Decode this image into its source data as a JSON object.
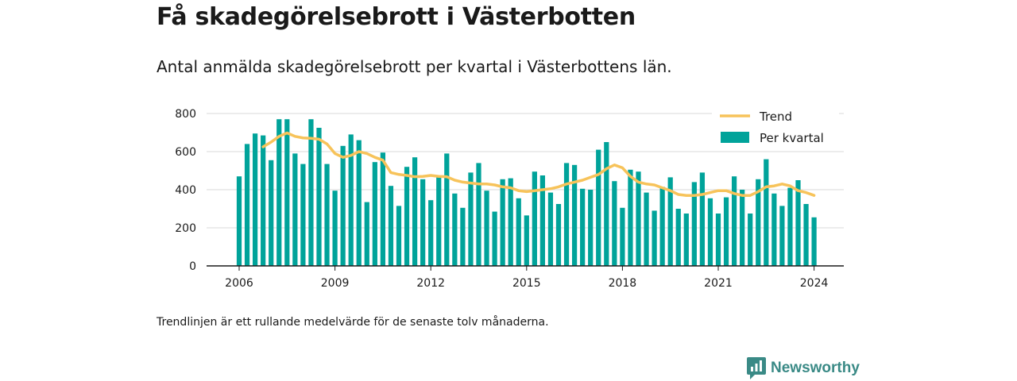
{
  "title": "Få skadegörelsebrott i Västerbotten",
  "subtitle": "Antal anmälda skadegörelsebrott per kvartal i Västerbottens län.",
  "footnote": "Trendlinjen är ett rullande medelvärde för de senaste tolv månaderna.",
  "brand": {
    "name": "Newsworthy",
    "icon": "newsworthy-chart-icon",
    "color": "#3a8a86"
  },
  "colors": {
    "bars": "#00a39a",
    "trend": "#f7c35a",
    "grid": "#d9d9d9",
    "axis": "#1a1a1a"
  },
  "chart_data": {
    "type": "bar",
    "x_unit": "quarter",
    "start_quarter": "2006Q1",
    "xticks": [
      "2006",
      "2009",
      "2012",
      "2015",
      "2018",
      "2021",
      "2024"
    ],
    "yticks": [
      "0",
      "200",
      "400",
      "600",
      "800"
    ],
    "ylim": [
      0,
      800
    ],
    "legend_position": "top-right",
    "grid": true,
    "series": [
      {
        "name": "Per kvartal",
        "type": "bar",
        "values": [
          470,
          640,
          695,
          685,
          555,
          770,
          770,
          590,
          535,
          770,
          725,
          535,
          395,
          630,
          690,
          660,
          335,
          545,
          595,
          420,
          315,
          520,
          570,
          455,
          345,
          465,
          590,
          380,
          305,
          490,
          540,
          395,
          285,
          455,
          460,
          355,
          265,
          495,
          475,
          385,
          325,
          540,
          530,
          405,
          400,
          610,
          650,
          445,
          305,
          505,
          495,
          385,
          290,
          415,
          465,
          300,
          275,
          440,
          490,
          355,
          275,
          360,
          470,
          400,
          275,
          455,
          560,
          380,
          315,
          410,
          450,
          325,
          255
        ]
      },
      {
        "name": "Trend",
        "type": "line",
        "values": [
          null,
          null,
          null,
          625,
          650,
          680,
          698,
          680,
          672,
          670,
          665,
          640,
          590,
          570,
          580,
          600,
          590,
          570,
          555,
          490,
          480,
          475,
          468,
          470,
          475,
          470,
          468,
          450,
          440,
          435,
          430,
          430,
          425,
          415,
          410,
          395,
          390,
          395,
          400,
          405,
          415,
          430,
          440,
          450,
          465,
          480,
          510,
          530,
          515,
          470,
          440,
          430,
          425,
          410,
          395,
          375,
          370,
          370,
          375,
          385,
          395,
          395,
          380,
          370,
          370,
          390,
          415,
          420,
          430,
          420,
          395,
          385,
          370
        ]
      }
    ]
  }
}
